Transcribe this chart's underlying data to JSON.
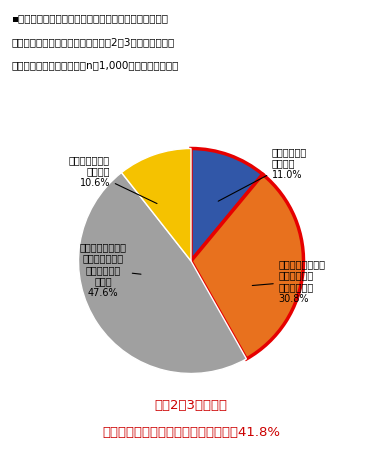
{
  "title_lines": [
    "▪あなたがお住まいのエリアで、あなた自身の避難が必",
    "要となるレベルの自然災害が、今後2～3年間で何かしら",
    "発生すると思いますか？（n＝1,000／単一回答方式）"
  ],
  "slices": [
    {
      "label_lines": [
        "確実に発生す",
        "ると思う",
        "11.0%"
      ],
      "value": 11.0,
      "color": "#3157a8"
    },
    {
      "label_lines": [
        "どちらかというと",
        "発生する確率",
        "が高いと思う",
        "30.8%"
      ],
      "value": 30.8,
      "color": "#e8711e"
    },
    {
      "label_lines": [
        "どちらかというと",
        "発生しないほう",
        "の確率が高い",
        "と思う",
        "47.6%"
      ],
      "value": 47.6,
      "color": "#a0a0a0"
    },
    {
      "label_lines": [
        "全く発生はしな",
        "いと思う",
        "10.6%"
      ],
      "value": 10.6,
      "color": "#f5c200"
    }
  ],
  "highlight_segments": [
    0,
    1
  ],
  "highlight_color": "#e60000",
  "highlight_linewidth": 2.5,
  "footer_line1": "今後2～3年以内に",
  "footer_line2": "避難が必要な災害が発生すると思う　41.8%",
  "footer_color": "#cc0000",
  "background_color": "#ffffff",
  "startangle": 90
}
